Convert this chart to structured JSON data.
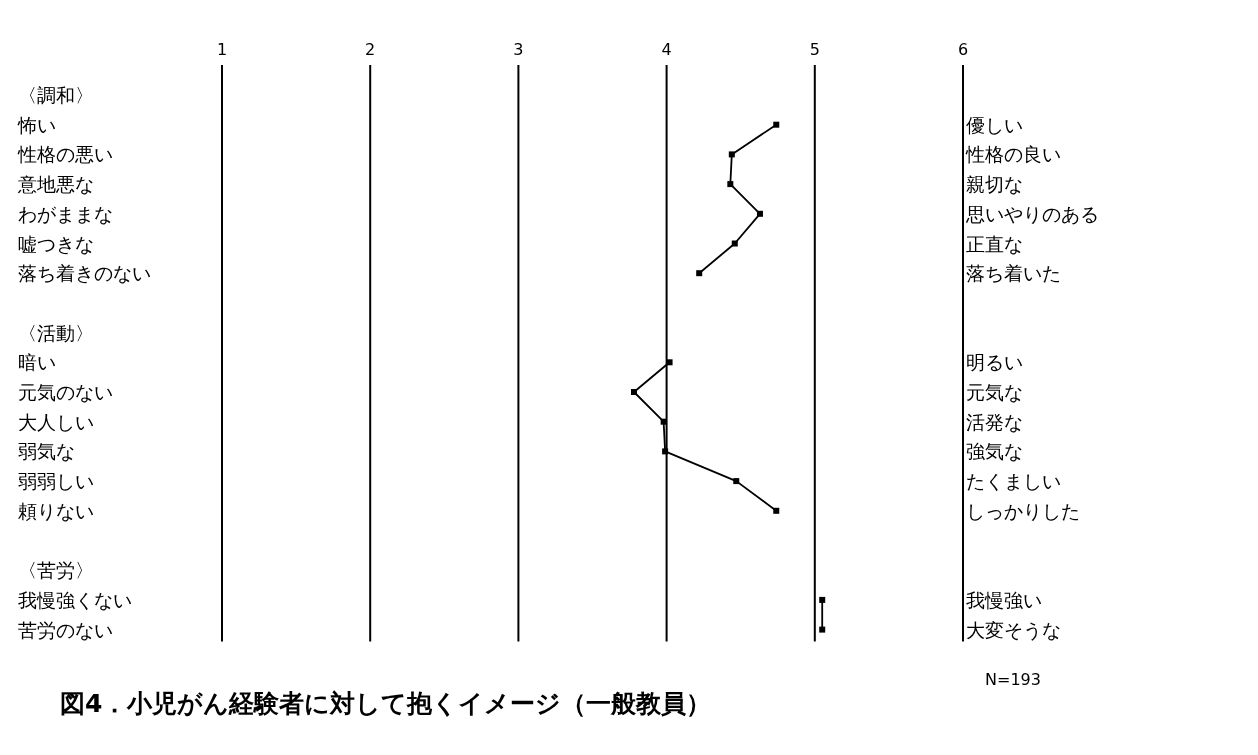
{
  "chart_data": {
    "type": "line",
    "orientation": "horizontal",
    "title": "図4．小児がん経験者に対して抱くイメージ（一般教員）",
    "categories": [
      "〈調和〉",
      "怖い",
      "性格の悪い",
      "意地悪な",
      "わがままな",
      "嘘つきな",
      "落ち着きのない",
      null,
      "〈活動〉",
      "暗い",
      "元気のない",
      "大人しい",
      "弱気な",
      "弱弱しい",
      "頼りない",
      null,
      "〈苦労〉",
      "我慢強くない",
      "苦労のない"
    ],
    "y2_categories": [
      null,
      "優しい",
      "性格の良い",
      "親切な",
      "思いやりのある",
      "正直な",
      "落ち着いた",
      null,
      null,
      "明るい",
      "元気な",
      "活発な",
      "強気な",
      "たくましい",
      "しっかりした",
      null,
      null,
      "我慢強い",
      "大変そうな"
    ],
    "series": [
      {
        "color": "#000000",
        "values": [
          null,
          4.74,
          4.44,
          4.43,
          4.63,
          4.46,
          4.22,
          null,
          null,
          4.02,
          3.78,
          3.98,
          3.99,
          4.47,
          4.74,
          null,
          null,
          5.05,
          5.05
        ]
      }
    ],
    "xlim": [
      1,
      6
    ],
    "xticks": [
      1,
      2,
      3,
      4,
      5,
      6
    ],
    "grid": "x",
    "marker": "square",
    "line_style": "solid",
    "annotations": [
      "N=193"
    ]
  }
}
